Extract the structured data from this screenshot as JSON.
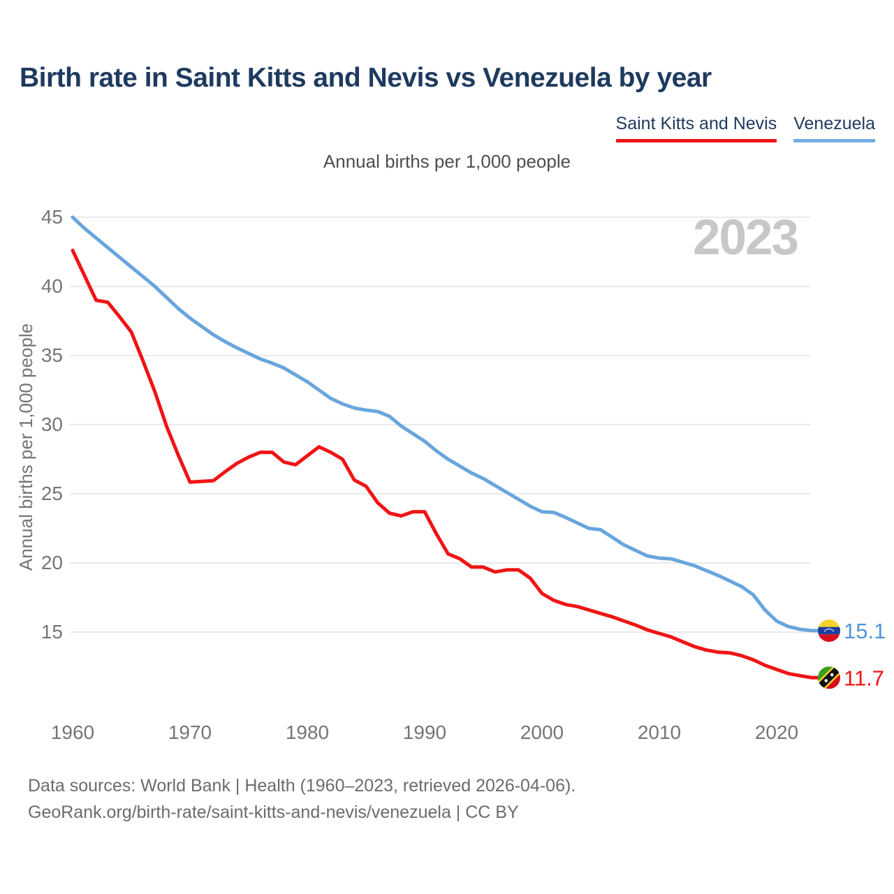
{
  "title": "Birth rate in Saint Kitts and Nevis vs Venezuela by year",
  "subtitle": "Annual births per 1,000 people",
  "watermark": "2023",
  "legend": [
    {
      "label": "Saint Kitts and Nevis",
      "color": "#f01414"
    },
    {
      "label": "Venezuela",
      "color": "#74aee3"
    }
  ],
  "footer": {
    "line1": "Data sources: World Bank | Health (1960–2023, retrieved 2026-04-06).",
    "line2": "GeoRank.org/birth-rate/saint-kitts-and-nevis/venezuela | CC BY"
  },
  "chart_data": {
    "type": "line",
    "title": "Birth rate in Saint Kitts and Nevis vs Venezuela by year",
    "subtitle": "Annual births per 1,000 people",
    "ylabel": "Annual births per 1,000 people",
    "xlabel": "",
    "grid": "horizontal",
    "legend_position": "top-right",
    "ylim": [
      15,
      45
    ],
    "yticks": [
      15,
      20,
      25,
      30,
      35,
      40,
      45
    ],
    "xticks": [
      1960,
      1970,
      1980,
      1990,
      2000,
      2010,
      2020
    ],
    "x_range": [
      1960,
      2023
    ],
    "x": [
      1960,
      1961,
      1962,
      1963,
      1964,
      1965,
      1966,
      1967,
      1968,
      1969,
      1970,
      1971,
      1972,
      1973,
      1974,
      1975,
      1976,
      1977,
      1978,
      1979,
      1980,
      1981,
      1982,
      1983,
      1984,
      1985,
      1986,
      1987,
      1988,
      1989,
      1990,
      1991,
      1992,
      1993,
      1994,
      1995,
      1996,
      1997,
      1998,
      1999,
      2000,
      2001,
      2002,
      2003,
      2004,
      2005,
      2006,
      2007,
      2008,
      2009,
      2010,
      2011,
      2012,
      2013,
      2014,
      2015,
      2016,
      2017,
      2018,
      2019,
      2020,
      2021,
      2022,
      2023
    ],
    "series": [
      {
        "name": "Venezuela",
        "color": "#68a5dd",
        "label_color": "#4e96d9",
        "end_label": "15.1",
        "flag": "venezuela",
        "values": [
          45.0,
          44.2,
          43.5,
          42.8,
          42.1,
          41.4,
          40.7,
          40.0,
          39.2,
          38.4,
          37.7,
          37.1,
          36.5,
          36.0,
          35.55,
          35.15,
          34.75,
          34.45,
          34.1,
          33.6,
          33.1,
          32.5,
          31.9,
          31.5,
          31.2,
          31.05,
          30.95,
          30.6,
          29.9,
          29.35,
          28.8,
          28.1,
          27.5,
          27.0,
          26.5,
          26.1,
          25.6,
          25.1,
          24.6,
          24.1,
          23.7,
          23.65,
          23.3,
          22.9,
          22.5,
          22.4,
          21.85,
          21.3,
          20.9,
          20.5,
          20.35,
          20.3,
          20.05,
          19.8,
          19.45,
          19.1,
          18.7,
          18.3,
          17.7,
          16.6,
          15.8,
          15.4,
          15.2,
          15.1
        ]
      },
      {
        "name": "Saint Kitts and Nevis",
        "color": "#f01414",
        "label_color": "#f01414",
        "end_label": "11.7",
        "flag": "saint-kitts-and-nevis",
        "values": [
          42.6,
          40.8,
          39.0,
          38.85,
          37.8,
          36.7,
          34.6,
          32.4,
          29.9,
          27.8,
          25.85,
          25.9,
          25.95,
          26.6,
          27.2,
          27.65,
          28.0,
          28.0,
          27.3,
          27.1,
          27.75,
          28.4,
          28.0,
          27.5,
          26.0,
          25.55,
          24.35,
          23.6,
          23.4,
          23.7,
          23.7,
          22.1,
          20.65,
          20.3,
          19.7,
          19.7,
          19.35,
          19.5,
          19.5,
          18.9,
          17.8,
          17.3,
          17.0,
          16.85,
          16.6,
          16.35,
          16.1,
          15.8,
          15.5,
          15.15,
          14.9,
          14.65,
          14.3,
          13.95,
          13.7,
          13.55,
          13.5,
          13.3,
          13.0,
          12.6,
          12.3,
          12.0,
          11.85,
          11.7
        ]
      }
    ],
    "colors": {
      "grid": "#e4e4e4",
      "tick_text": "#757575",
      "watermark": "#c7c7c7",
      "title_text": "#1e3a5e"
    }
  }
}
